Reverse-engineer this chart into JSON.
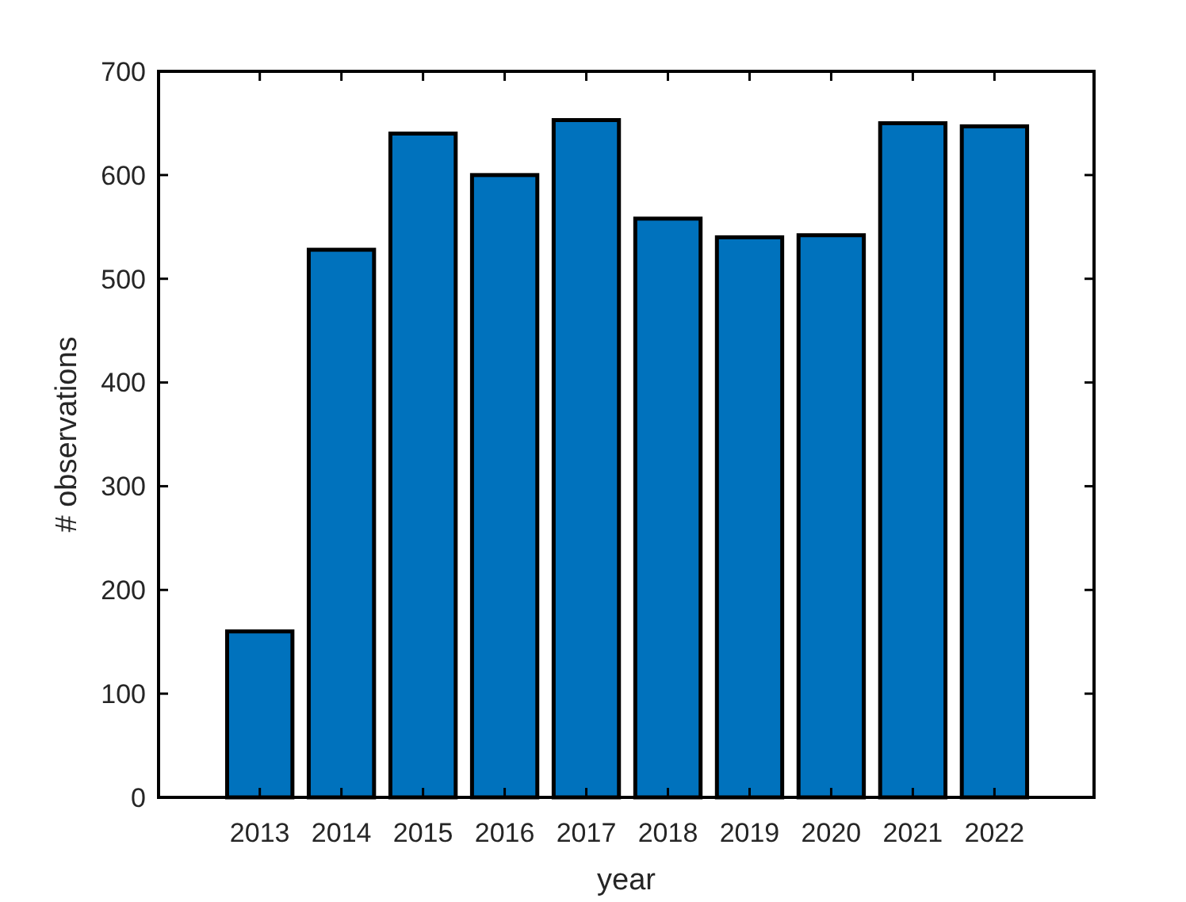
{
  "chart_data": {
    "type": "bar",
    "xlabel": "year",
    "ylabel": "# observations",
    "categories": [
      "2013",
      "2014",
      "2015",
      "2016",
      "2017",
      "2018",
      "2019",
      "2020",
      "2021",
      "2022"
    ],
    "values": [
      160,
      528,
      640,
      600,
      653,
      558,
      540,
      542,
      650,
      647
    ],
    "color": "#0072bd",
    "ylim": [
      0,
      700
    ],
    "yticks": [
      0,
      100,
      200,
      300,
      400,
      500,
      600,
      700
    ],
    "grid": false
  }
}
